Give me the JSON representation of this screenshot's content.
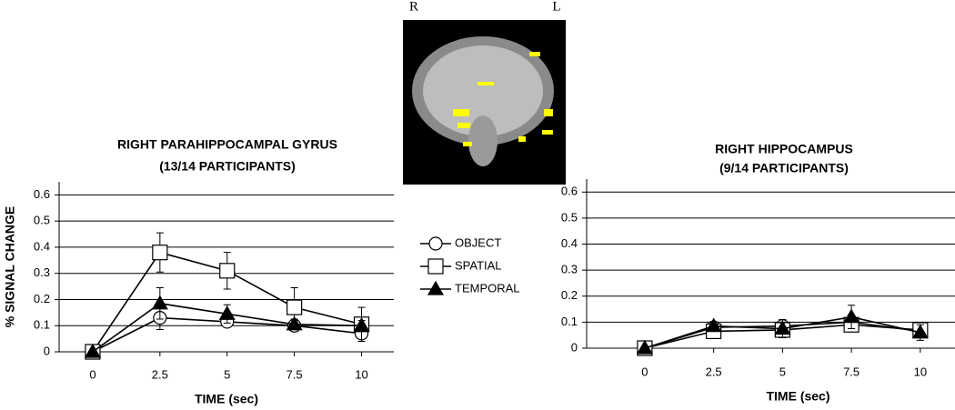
{
  "image": {
    "left_label": "R",
    "right_label": "L"
  },
  "chart_data": [
    {
      "type": "line",
      "title": "RIGHT PARAHIPPOCAMPAL GYRUS",
      "subtitle": "(13/14 PARTICIPANTS)",
      "xlabel": "TIME (sec)",
      "ylabel": "% SIGNAL CHANGE",
      "x": [
        0,
        2.5,
        5,
        7.5,
        10
      ],
      "xlim": [
        -1.25,
        11.2
      ],
      "xticks": [
        0,
        2.5,
        5,
        7.5,
        10
      ],
      "ylim": [
        0,
        0.65
      ],
      "yticks": [
        0,
        0.1,
        0.2,
        0.3,
        0.4,
        0.5,
        0.6
      ],
      "grid": true,
      "legend": "right",
      "series": [
        {
          "name": "OBJECT",
          "marker": "circle",
          "color": "#000000",
          "values": [
            0,
            0.13,
            0.115,
            0.1,
            0.07
          ],
          "errors": [
            0,
            0.045,
            0.02,
            0.015,
            0.02
          ]
        },
        {
          "name": "SPATIAL",
          "marker": "square",
          "color": "#000000",
          "values": [
            0,
            0.38,
            0.31,
            0.17,
            0.105
          ],
          "errors": [
            0,
            0.075,
            0.07,
            0.075,
            0.065
          ]
        },
        {
          "name": "TEMPORAL",
          "marker": "triangle",
          "color": "#000000",
          "values": [
            0,
            0.185,
            0.145,
            0.105,
            0.1
          ],
          "errors": [
            0,
            0.06,
            0.035,
            0.02,
            0.02
          ]
        }
      ]
    },
    {
      "type": "line",
      "title": "RIGHT HIPPOCAMPUS",
      "subtitle": "(9/14 PARTICIPANTS)",
      "xlabel": "TIME (sec)",
      "x": [
        0,
        2.5,
        5,
        7.5,
        10
      ],
      "xlim": [
        -2.11,
        11.26
      ],
      "xticks": [
        0,
        2.5,
        5,
        7.5,
        10
      ],
      "ylim": [
        0,
        0.65
      ],
      "yticks": [
        0,
        0.1,
        0.2,
        0.3,
        0.4,
        0.5,
        0.6
      ],
      "grid": true,
      "series": [
        {
          "marker": "circle",
          "color": "#000000",
          "values": [
            0,
            0.08,
            0.085,
            0.1,
            0.065
          ],
          "errors": [
            0,
            0.02,
            0.025,
            0.02,
            0.02
          ]
        },
        {
          "marker": "square",
          "color": "#000000",
          "values": [
            0,
            0.065,
            0.07,
            0.09,
            0.07
          ],
          "errors": [
            0,
            0.02,
            0.03,
            0.02,
            0.025
          ]
        },
        {
          "marker": "triangle",
          "color": "#000000",
          "values": [
            0,
            0.085,
            0.075,
            0.12,
            0.06
          ],
          "errors": [
            0,
            0.015,
            0.035,
            0.045,
            0.03
          ]
        }
      ]
    }
  ]
}
